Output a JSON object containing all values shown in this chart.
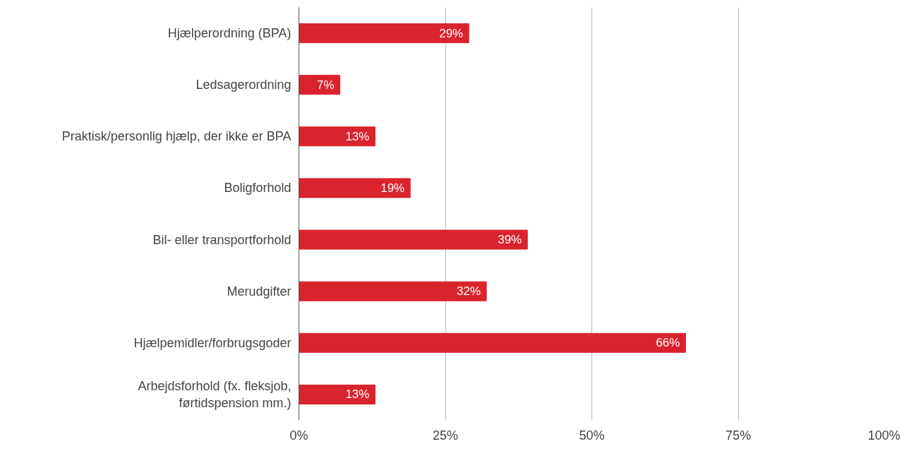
{
  "chart_data": {
    "type": "bar",
    "orientation": "horizontal",
    "categories": [
      "Hjælperordning (BPA)",
      "Ledsagerordning",
      "Praktisk/personlig hjælp, der ikke er BPA",
      "Boligforhold",
      "Bil- eller transportforhold",
      "Merudgifter",
      "Hjælpemidler/forbrugsgoder",
      "Arbejdsforhold (fx. fleksjob, førtidspension mm.)"
    ],
    "values": [
      29,
      7,
      13,
      19,
      39,
      32,
      66,
      13
    ],
    "value_labels": [
      "29%",
      "7%",
      "13%",
      "19%",
      "39%",
      "32%",
      "66%",
      "13%"
    ],
    "color": "#d9232d",
    "xlim": [
      0,
      100
    ],
    "xticks": [
      {
        "value": 0,
        "label": "0%"
      },
      {
        "value": 25,
        "label": "25%"
      },
      {
        "value": 50,
        "label": "50%"
      },
      {
        "value": 75,
        "label": "75%"
      },
      {
        "value": 100,
        "label": "100%"
      }
    ],
    "grid": "x"
  }
}
